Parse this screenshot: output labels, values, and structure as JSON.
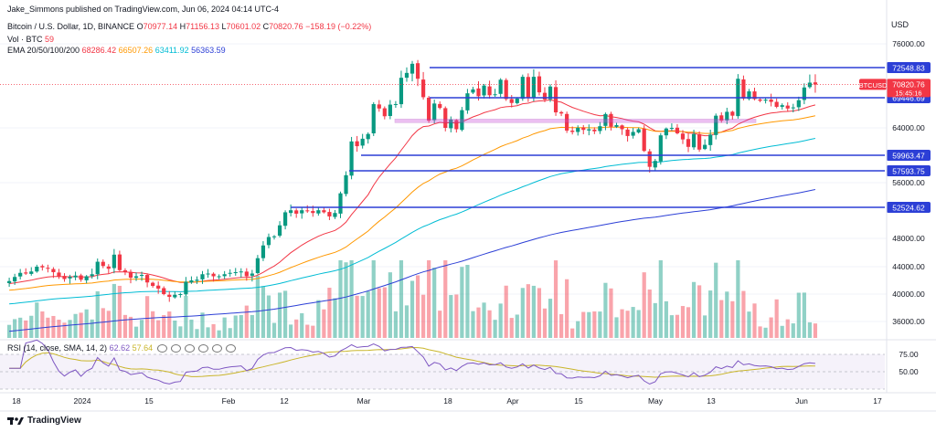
{
  "header": {
    "publisher": "Jake_Simmons published on TradingView.com, Jun 06, 2024 04:14 UTC-4",
    "title": "Bitcoin / U.S. Dollar, 1D, BINANCE",
    "open_label": "O",
    "open": "70977.14",
    "high_label": "H",
    "high": "71156.13",
    "low_label": "L",
    "low": "70601.02",
    "close_label": "C",
    "close": "70820.76",
    "change": "−158.19 (−0.22%)",
    "vol_label": "Vol · BTC",
    "vol_value": "59",
    "ema_label": "EMA 20/50/100/200",
    "ema20": "68286.42",
    "ema50": "66507.26",
    "ema100": "63411.92",
    "ema200": "56363.59"
  },
  "rsi": {
    "label": "RSI (14, close, SMA, 14, 2)",
    "value": "62.62",
    "sma": "57.64"
  },
  "footer": {
    "brand": "TradingView"
  },
  "colors": {
    "up": "#089981",
    "down": "#f23645",
    "ema20": "#f23645",
    "ema50": "#ff9800",
    "ema100": "#00bcd4",
    "ema200": "#2c3fd6",
    "level": "#2c3fd6",
    "rsi": "#7e57c2",
    "rsi_sma": "#c9b52a"
  },
  "chart_data": {
    "type": "candlestick",
    "title": "Bitcoin / U.S. Dollar, 1D, BINANCE",
    "currency": "USD",
    "y_ticks": [
      "76000.00",
      "64000.00",
      "56000.00",
      "48000.00",
      "44000.00",
      "40000.00",
      "36000.00"
    ],
    "x_ticks": [
      "18",
      "2024",
      "15",
      "Feb",
      "12",
      "Mar",
      "18",
      "Apr",
      "15",
      "May",
      "13",
      "Jun",
      "17"
    ],
    "levels": [
      {
        "label": "72548.83",
        "value": 72548.83
      },
      {
        "label": "69446.69",
        "value": 69446.69
      },
      {
        "label": "59963.47",
        "value": 59963.47
      },
      {
        "label": "57593.75",
        "value": 57593.75
      },
      {
        "label": "52524.62",
        "value": 52524.62
      }
    ],
    "current": {
      "symbol": "BTCUSD",
      "price": "70820.76",
      "countdown": "15:45:16"
    },
    "rsi_ticks": [
      "75.00",
      "50.00"
    ],
    "closes": [
      41900,
      42500,
      43100,
      43000,
      43300,
      44000,
      43900,
      43700,
      43200,
      42600,
      42200,
      42500,
      42700,
      42100,
      42600,
      42900,
      44700,
      44100,
      43700,
      45700,
      43500,
      43200,
      42400,
      42600,
      42800,
      41700,
      41200,
      40800,
      40000,
      39600,
      39900,
      40000,
      41800,
      42000,
      42100,
      42900,
      43000,
      42600,
      42600,
      42900,
      43100,
      43200,
      43300,
      42600,
      43000,
      45200,
      47000,
      48200,
      48300,
      49900,
      51800,
      52100,
      51600,
      52100,
      52000,
      51700,
      52100,
      51800,
      51200,
      51700,
      54500,
      57000,
      62000,
      61300,
      62400,
      63100,
      68300,
      67500,
      66100,
      68200,
      68300,
      71500,
      72000,
      73100,
      71400,
      69500,
      65300,
      68400,
      67600,
      64000,
      65500,
      63800,
      67200,
      69900,
      70300,
      69600,
      70700,
      69700,
      69800,
      71300,
      69200,
      68500,
      69300,
      71600,
      69400,
      71600,
      70000,
      69100,
      70600,
      66800,
      66600,
      63600,
      63400,
      64000,
      63700,
      63800,
      63500,
      64300,
      66500,
      64200,
      64500,
      63800,
      62800,
      63400,
      63800,
      60600,
      58200,
      59100,
      62900,
      63900,
      64000,
      63200,
      62300,
      61200,
      63100,
      60800,
      61500,
      63000,
      66200,
      65300,
      66900,
      66200,
      71400,
      69300,
      70100,
      69200,
      68900,
      69100,
      68700,
      67800,
      68100,
      67500,
      67700,
      69000,
      70500,
      71000,
      70800
    ]
  }
}
